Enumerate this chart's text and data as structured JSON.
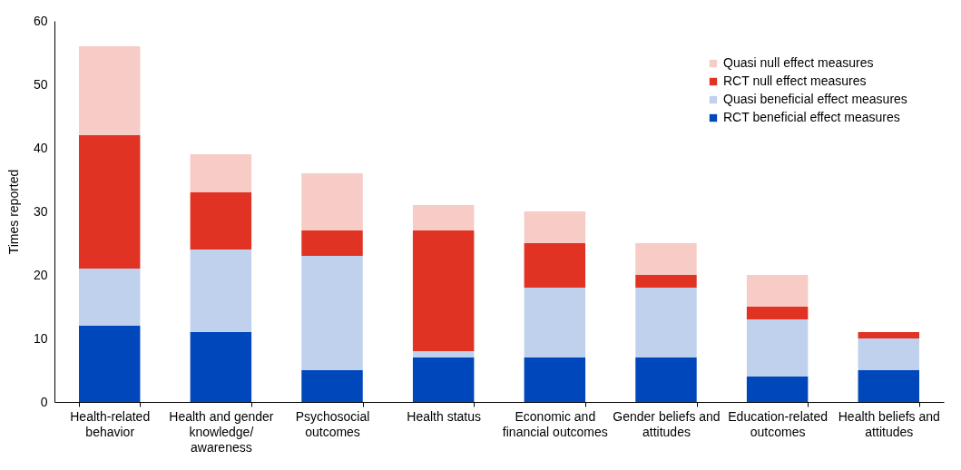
{
  "chart_data": {
    "type": "bar",
    "stacked": true,
    "ylabel": "Times reported",
    "categories": [
      "Health-related behavior",
      "Health and gender knowledge/ awareness",
      "Psychosocial outcomes",
      "Health status",
      "Economic and financial outcomes",
      "Gender beliefs and attitudes",
      "Education-related outcomes",
      "Health beliefs and attitudes"
    ],
    "series": [
      {
        "name": "RCT beneficial effect measures",
        "color": "#0047bb",
        "values": [
          12,
          11,
          5,
          7,
          7,
          7,
          4,
          5
        ]
      },
      {
        "name": "Quasi beneficial effect measures",
        "color": "#c0d1ee",
        "values": [
          9,
          13,
          18,
          1,
          11,
          11,
          9,
          5
        ]
      },
      {
        "name": "RCT null effect measures",
        "color": "#e03323",
        "values": [
          21,
          9,
          4,
          19,
          7,
          2,
          2,
          1
        ]
      },
      {
        "name": "Quasi null effect measures",
        "color": "#f7cbc6",
        "values": [
          14,
          6,
          9,
          4,
          5,
          5,
          5,
          0
        ]
      }
    ],
    "ylim": [
      0,
      60
    ],
    "yticks": [
      0,
      10,
      20,
      30,
      40,
      50,
      60
    ],
    "grid": false,
    "legend": "top right"
  }
}
